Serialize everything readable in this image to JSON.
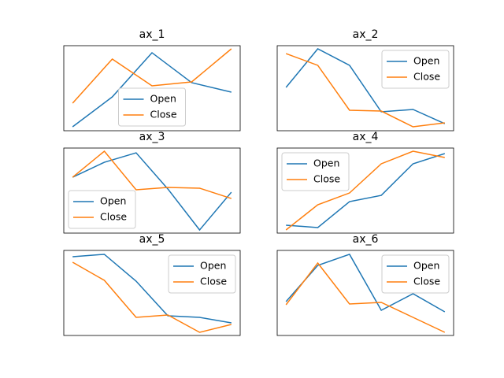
{
  "chart_data": [
    {
      "type": "line",
      "title": "ax_1",
      "categories": [
        null,
        null,
        null,
        null,
        null
      ],
      "ylim": [
        0,
        100
      ],
      "legend": "lower center",
      "series": [
        {
          "name": "Open",
          "color": "#1f77b4",
          "values": [
            4.6,
            39.8,
            91.7,
            56.5,
            45.4
          ]
        },
        {
          "name": "Close",
          "color": "#ff7f0e",
          "values": [
            32.4,
            84.3,
            52.8,
            57.4,
            96.3
          ]
        }
      ]
    },
    {
      "type": "line",
      "title": "ax_2",
      "categories": [
        null,
        null,
        null,
        null,
        null,
        null
      ],
      "ylim": [
        0,
        100
      ],
      "legend": "upper right",
      "series": [
        {
          "name": "Open",
          "color": "#1f77b4",
          "values": [
            50.9,
            96.3,
            76.9,
            22.2,
            25,
            8.3
          ]
        },
        {
          "name": "Close",
          "color": "#ff7f0e",
          "values": [
            90.7,
            76.9,
            24.1,
            23.1,
            4.6,
            9.3
          ]
        }
      ]
    },
    {
      "type": "line",
      "title": "ax_3",
      "categories": [
        null,
        null,
        null,
        null,
        null,
        null
      ],
      "ylim": [
        0,
        100
      ],
      "legend": "lower left",
      "series": [
        {
          "name": "Open",
          "color": "#1f77b4",
          "values": [
            65.7,
            83.3,
            94.4,
            51.9,
            3.7,
            48.1
          ]
        },
        {
          "name": "Close",
          "color": "#ff7f0e",
          "values": [
            65.7,
            96.3,
            50.9,
            53.7,
            52.8,
            40.7
          ]
        }
      ]
    },
    {
      "type": "line",
      "title": "ax_4",
      "categories": [
        null,
        null,
        null,
        null,
        null,
        null
      ],
      "ylim": [
        0,
        100
      ],
      "legend": "upper left",
      "series": [
        {
          "name": "Open",
          "color": "#1f77b4",
          "values": [
            9.3,
            6.5,
            37,
            44.4,
            81.5,
            93.5
          ]
        },
        {
          "name": "Close",
          "color": "#ff7f0e",
          "values": [
            3.7,
            33.3,
            47.2,
            81.5,
            96.3,
            88.9
          ]
        }
      ]
    },
    {
      "type": "line",
      "title": "ax_5",
      "categories": [
        null,
        null,
        null,
        null,
        null,
        null
      ],
      "ylim": [
        0,
        100
      ],
      "legend": "upper right",
      "series": [
        {
          "name": "Open",
          "color": "#1f77b4",
          "values": [
            92.6,
            95.4,
            63.9,
            23.1,
            21.3,
            14.8
          ]
        },
        {
          "name": "Close",
          "color": "#ff7f0e",
          "values": [
            86.1,
            64.8,
            21.3,
            24.1,
            3.7,
            13
          ]
        }
      ]
    },
    {
      "type": "line",
      "title": "ax_6",
      "categories": [
        null,
        null,
        null,
        null,
        null,
        null
      ],
      "ylim": [
        0,
        100
      ],
      "legend": "upper right",
      "series": [
        {
          "name": "Open",
          "color": "#1f77b4",
          "values": [
            39.8,
            82.4,
            95.4,
            29.6,
            49.1,
            27.8
          ]
        },
        {
          "name": "Close",
          "color": "#ff7f0e",
          "values": [
            36.1,
            85.2,
            37,
            38.9,
            21.3,
            3.7
          ]
        }
      ]
    }
  ]
}
